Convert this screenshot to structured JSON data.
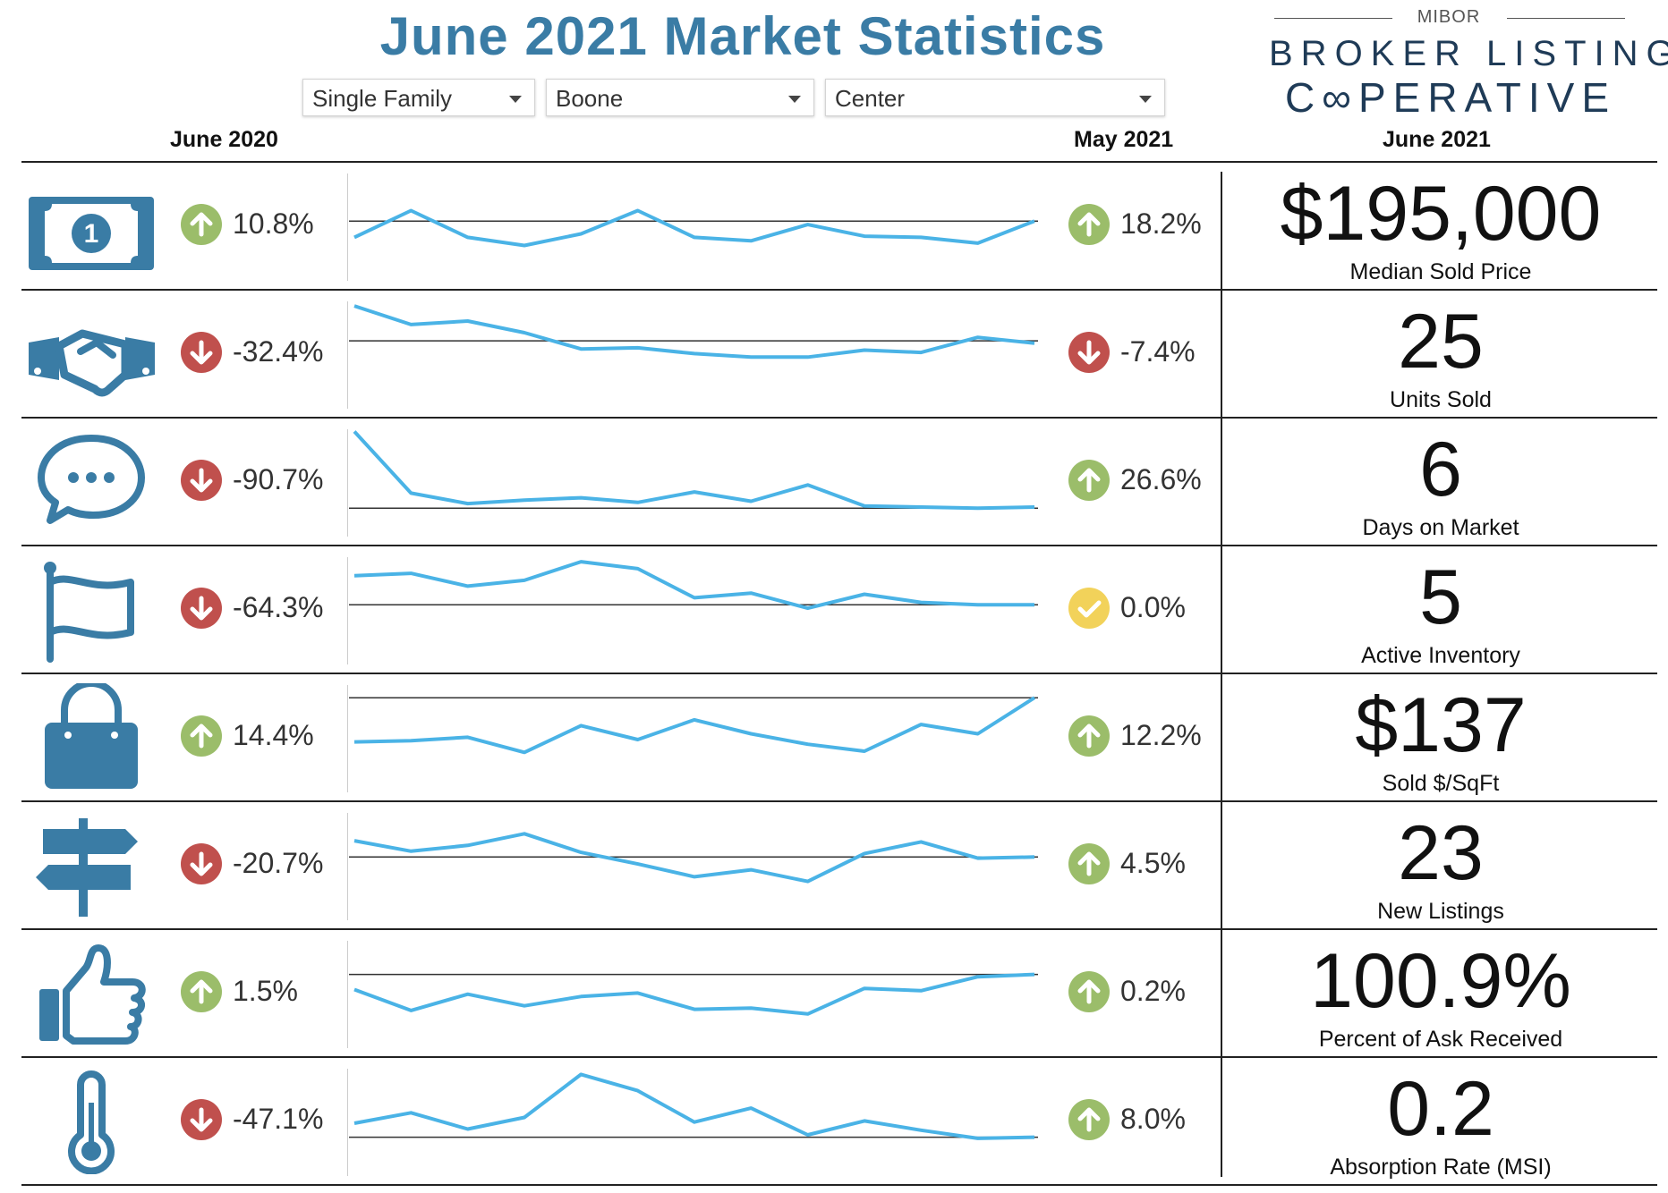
{
  "header": {
    "title": "June 2021 Market Statistics",
    "dropdowns": [
      "Single Family",
      "Boone",
      "Center"
    ],
    "col_june2020": "June 2020",
    "col_may2021": "May 2021",
    "col_june2021": "June 2021"
  },
  "logo": {
    "top": "MIBOR",
    "line1": "BROKER LISTING",
    "line2": "C∞PERATIVE"
  },
  "colors": {
    "title": "#3a7ca5",
    "icon": "#3a7ca5",
    "spark": "#4ab3e6",
    "up": "#9bbd6a",
    "down": "#c0504d",
    "neutral": "#f2d25a"
  },
  "rows": [
    {
      "icon": "dollar-bill-icon",
      "yoy": "10.8%",
      "yoy_dir": "up",
      "mom": "18.2%",
      "mom_dir": "up",
      "value": "$195,000",
      "label": "Median Sold Price",
      "trend": [
        0.42,
        0.65,
        0.42,
        0.35,
        0.45,
        0.65,
        0.42,
        0.39,
        0.53,
        0.43,
        0.42,
        0.37,
        0.56
      ],
      "baseline": 0.56
    },
    {
      "icon": "handshake-icon",
      "yoy": "-32.4%",
      "yoy_dir": "down",
      "mom": "-7.4%",
      "mom_dir": "down",
      "value": "25",
      "label": "Units Sold",
      "trend": [
        0.93,
        0.77,
        0.8,
        0.7,
        0.56,
        0.57,
        0.52,
        0.49,
        0.49,
        0.55,
        0.53,
        0.66,
        0.61
      ],
      "baseline": 0.63
    },
    {
      "icon": "speech-bubble-icon",
      "yoy": "-90.7%",
      "yoy_dir": "down",
      "mom": "26.6%",
      "mom_dir": "up",
      "value": "6",
      "label": "Days on Market",
      "trend": [
        0.95,
        0.42,
        0.33,
        0.36,
        0.38,
        0.34,
        0.43,
        0.35,
        0.49,
        0.31,
        0.3,
        0.29,
        0.3
      ],
      "baseline": 0.29
    },
    {
      "icon": "flag-icon",
      "yoy": "-64.3%",
      "yoy_dir": "down",
      "mom": "0.0%",
      "mom_dir": "neutral",
      "value": "5",
      "label": "Active Inventory",
      "trend": [
        0.81,
        0.83,
        0.72,
        0.77,
        0.93,
        0.87,
        0.62,
        0.66,
        0.53,
        0.65,
        0.58,
        0.56,
        0.56
      ],
      "baseline": 0.56
    },
    {
      "icon": "shopping-bag-icon",
      "yoy": "14.4%",
      "yoy_dir": "up",
      "mom": "12.2%",
      "mom_dir": "up",
      "value": "$137",
      "label": "Sold $/SqFt",
      "trend": [
        0.48,
        0.49,
        0.52,
        0.39,
        0.62,
        0.5,
        0.67,
        0.55,
        0.46,
        0.4,
        0.63,
        0.55,
        0.86
      ],
      "baseline": 0.86
    },
    {
      "icon": "signpost-icon",
      "yoy": "-20.7%",
      "yoy_dir": "down",
      "mom": "4.5%",
      "mom_dir": "up",
      "value": "23",
      "label": "New Listings",
      "trend": [
        0.73,
        0.64,
        0.69,
        0.79,
        0.63,
        0.53,
        0.42,
        0.48,
        0.38,
        0.62,
        0.72,
        0.58,
        0.59
      ],
      "baseline": 0.59
    },
    {
      "icon": "thumbs-up-icon",
      "yoy": "1.5%",
      "yoy_dir": "up",
      "mom": "0.2%",
      "mom_dir": "up",
      "value": "100.9%",
      "label": "Percent of Ask Received",
      "trend": [
        0.55,
        0.37,
        0.51,
        0.41,
        0.49,
        0.52,
        0.38,
        0.39,
        0.34,
        0.56,
        0.54,
        0.66,
        0.68
      ],
      "baseline": 0.68
    },
    {
      "icon": "thermometer-icon",
      "yoy": "-47.1%",
      "yoy_dir": "down",
      "mom": "8.0%",
      "mom_dir": "up",
      "value": "0.2",
      "label": "Absorption Rate (MSI)",
      "trend": [
        0.5,
        0.59,
        0.45,
        0.55,
        0.92,
        0.78,
        0.51,
        0.63,
        0.4,
        0.52,
        0.44,
        0.37,
        0.38
      ],
      "baseline": 0.38
    }
  ]
}
